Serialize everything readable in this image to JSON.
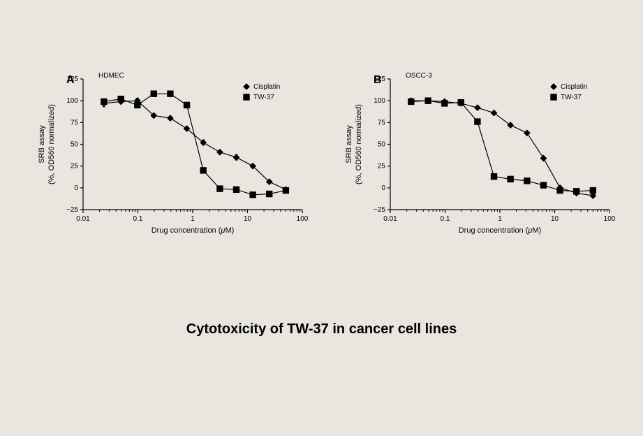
{
  "caption": "Cytotoxicity of TW-37 in cancer cell lines",
  "global": {
    "background_color": "#e8e6df",
    "axis_color": "#000000",
    "line_color": "#000000",
    "marker_fill": "#000000",
    "errorbar_color": "#000000",
    "tick_fontsize": 10,
    "label_fontsize": 11,
    "panel_letter_fontsize": 16,
    "cellline_fontsize": 10,
    "legend_fontsize": 10,
    "caption_fontsize": 20,
    "line_width": 1.2,
    "marker_size": 4.2,
    "errorcap_halfwidth": 2.2
  },
  "panels": [
    {
      "letter": "A",
      "cell_line": "HDMEC",
      "xlabel_prefix": "Drug concentration (",
      "xlabel_unit": "μ",
      "xlabel_suffix": "M)",
      "ylabel_line1": "SRB assay",
      "ylabel_line2": "(%, OD560 normalized)",
      "x_scale": "log",
      "xlim": [
        0.01,
        100
      ],
      "x_ticks_major": [
        0.01,
        0.1,
        1,
        10,
        100
      ],
      "x_ticklabels": [
        "0.01",
        "0.1",
        "1",
        "10",
        "100"
      ],
      "ylim": [
        -25,
        125
      ],
      "y_ticks": [
        -25,
        0,
        25,
        50,
        75,
        100,
        125
      ],
      "y_ticklabels": [
        "−25",
        "0",
        "25",
        "50",
        "75",
        "100",
        "125"
      ],
      "grid": false,
      "legend": [
        {
          "label": "Cisplatin",
          "marker": "diamond"
        },
        {
          "label": "TW-37",
          "marker": "square"
        }
      ],
      "series": [
        {
          "name": "Cisplatin",
          "marker": "diamond",
          "x": [
            0.024,
            0.049,
            0.098,
            0.195,
            0.39,
            0.78,
            1.56,
            3.13,
            6.25,
            12.5,
            25,
            50
          ],
          "y": [
            97,
            99,
            100,
            83,
            80,
            68,
            52,
            41,
            35,
            25,
            7,
            -2
          ],
          "ey": [
            4,
            2,
            3,
            2,
            2,
            1,
            3,
            2,
            3,
            2,
            2,
            1
          ]
        },
        {
          "name": "TW-37",
          "marker": "square",
          "x": [
            0.024,
            0.049,
            0.098,
            0.195,
            0.39,
            0.78,
            1.56,
            3.13,
            6.25,
            12.5,
            25,
            50
          ],
          "y": [
            99,
            102,
            95,
            108,
            108,
            95,
            20,
            -1,
            -2,
            -8,
            -7,
            -3
          ],
          "ey": [
            2,
            2,
            2,
            3,
            2,
            2,
            2,
            1,
            1,
            1,
            1,
            1
          ]
        }
      ]
    },
    {
      "letter": "B",
      "cell_line": "OSCC-3",
      "xlabel_prefix": "Drug concentration (",
      "xlabel_unit": "μ",
      "xlabel_suffix": "M)",
      "ylabel_line1": "SRB assay",
      "ylabel_line2": "(%, OD560 normalized)",
      "x_scale": "log",
      "xlim": [
        0.01,
        100
      ],
      "x_ticks_major": [
        0.01,
        0.1,
        1,
        10,
        100
      ],
      "x_ticklabels": [
        "0.01",
        "0.1",
        "1",
        "10",
        "100"
      ],
      "ylim": [
        -25,
        125
      ],
      "y_ticks": [
        -25,
        0,
        25,
        50,
        75,
        100,
        125
      ],
      "y_ticklabels": [
        "−25",
        "0",
        "25",
        "50",
        "75",
        "100",
        "125"
      ],
      "grid": false,
      "legend": [
        {
          "label": "Cisplatin",
          "marker": "diamond"
        },
        {
          "label": "TW-37",
          "marker": "square"
        }
      ],
      "series": [
        {
          "name": "Cisplatin",
          "marker": "diamond",
          "x": [
            0.024,
            0.049,
            0.098,
            0.195,
            0.39,
            0.78,
            1.56,
            3.13,
            6.25,
            12.5,
            25,
            50
          ],
          "y": [
            100,
            100,
            99,
            97,
            92,
            86,
            72,
            63,
            34,
            0,
            -6,
            -9
          ],
          "ey": [
            0,
            0,
            0,
            0,
            0,
            0,
            0,
            0,
            0,
            0,
            0,
            0
          ]
        },
        {
          "name": "TW-37",
          "marker": "square",
          "x": [
            0.024,
            0.049,
            0.098,
            0.195,
            0.39,
            0.78,
            1.56,
            3.13,
            6.25,
            12.5,
            25,
            50
          ],
          "y": [
            99,
            100,
            97,
            98,
            76,
            13,
            10,
            8,
            3,
            -3,
            -4,
            -3
          ],
          "ey": [
            0,
            0,
            0,
            0,
            0,
            0,
            0,
            0,
            0,
            0,
            0,
            0
          ]
        }
      ]
    }
  ]
}
